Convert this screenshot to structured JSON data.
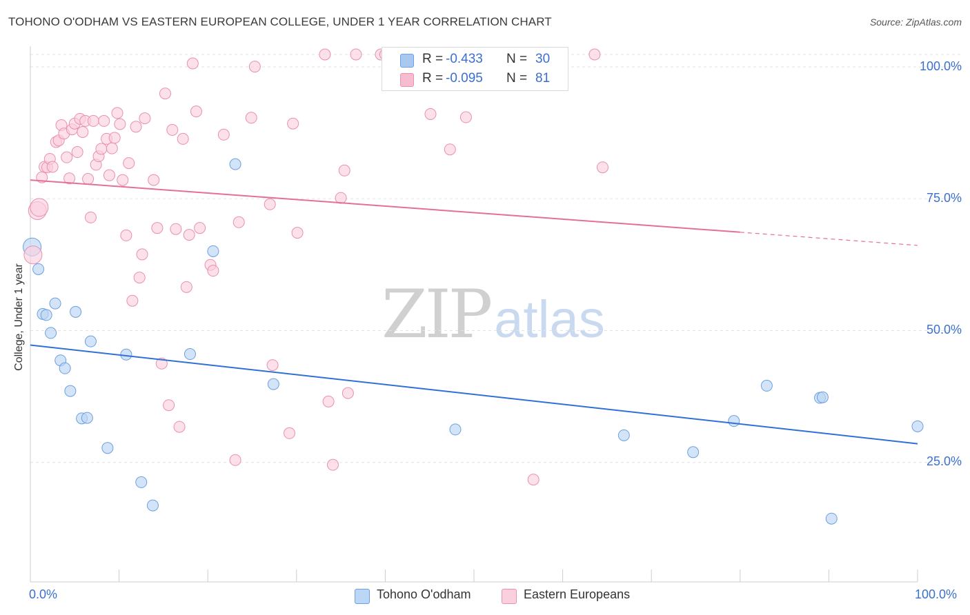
{
  "title": "TOHONO O'ODHAM VS EASTERN EUROPEAN COLLEGE, UNDER 1 YEAR CORRELATION CHART",
  "source": "Source: ZipAtlas.com",
  "watermark": {
    "zip": "ZIP",
    "atlas": "atlas"
  },
  "legend": {
    "rows": [
      {
        "r_label": "R =",
        "r_value": "-0.433",
        "n_label": "N =",
        "n_value": "30",
        "color": "#a8c8f0",
        "border": "#6a9fe0"
      },
      {
        "r_label": "R =",
        "r_value": "-0.095",
        "n_label": "N =",
        "n_value": "81",
        "color": "#f8bcd0",
        "border": "#e890ae"
      }
    ]
  },
  "bottom_legend": [
    {
      "label": "Tohono O'odham",
      "color": "#bcd6f5",
      "border": "#6a9fe0"
    },
    {
      "label": "Eastern Europeans",
      "color": "#fbd0de",
      "border": "#e890ae"
    }
  ],
  "chart_data": {
    "type": "scatter",
    "title": "TOHONO O'ODHAM VS EASTERN EUROPEAN COLLEGE, UNDER 1 YEAR CORRELATION CHART",
    "xlabel": "",
    "ylabel": "College, Under 1 year",
    "xlim": [
      0,
      100
    ],
    "ylim": [
      0,
      100
    ],
    "x_tick_labels": [
      "0.0%",
      "100.0%"
    ],
    "y_tick_labels": [
      {
        "value": 100,
        "label": "100.0%"
      },
      {
        "value": 75,
        "label": "75.0%"
      },
      {
        "value": 50,
        "label": "50.0%"
      },
      {
        "value": 25,
        "label": "25.0%"
      }
    ],
    "grid": "horizontal dashed",
    "series": [
      {
        "name": "Tohono O'odham",
        "color": "#6a9fe0",
        "fill": "#bcd6f5",
        "trend": {
          "x0": 0,
          "y0": 44.9,
          "x1": 100,
          "y1": 26.2,
          "color": "#2f6fd6"
        },
        "points": [
          [
            0.2,
            63.5
          ],
          [
            0.9,
            59.3
          ],
          [
            1.4,
            50.8
          ],
          [
            1.8,
            50.6
          ],
          [
            2.3,
            47.2
          ],
          [
            2.8,
            52.8
          ],
          [
            3.4,
            42.0
          ],
          [
            3.9,
            40.5
          ],
          [
            4.5,
            36.2
          ],
          [
            5.1,
            51.2
          ],
          [
            5.8,
            31.0
          ],
          [
            6.4,
            31.1
          ],
          [
            6.8,
            45.6
          ],
          [
            8.7,
            25.4
          ],
          [
            10.8,
            43.1
          ],
          [
            12.5,
            18.9
          ],
          [
            13.8,
            14.5
          ],
          [
            18.0,
            43.2
          ],
          [
            20.6,
            62.7
          ],
          [
            23.1,
            79.2
          ],
          [
            27.4,
            37.5
          ],
          [
            47.9,
            28.9
          ],
          [
            66.9,
            27.8
          ],
          [
            74.7,
            24.6
          ],
          [
            79.3,
            30.5
          ],
          [
            83.0,
            37.2
          ],
          [
            89.0,
            34.9
          ],
          [
            89.3,
            35.0
          ],
          [
            90.3,
            12.0
          ],
          [
            100.0,
            29.5
          ]
        ]
      },
      {
        "name": "Eastern Europeans",
        "color": "#e890ae",
        "fill": "#fbd0de",
        "trend": {
          "x0": 0,
          "y0": 76.2,
          "x1": 80.0,
          "y1": 66.3,
          "x_dash_end": 100,
          "y_dash_end": 63.8,
          "color": "#e56f96"
        },
        "points": [
          [
            0.3,
            62.0
          ],
          [
            0.8,
            70.4
          ],
          [
            1.0,
            71.0
          ],
          [
            1.3,
            76.7
          ],
          [
            1.6,
            78.7
          ],
          [
            1.9,
            78.6
          ],
          [
            2.2,
            80.2
          ],
          [
            2.5,
            78.7
          ],
          [
            2.9,
            83.4
          ],
          [
            3.2,
            83.7
          ],
          [
            3.5,
            86.6
          ],
          [
            3.8,
            85.0
          ],
          [
            4.1,
            80.5
          ],
          [
            4.4,
            76.5
          ],
          [
            4.7,
            85.8
          ],
          [
            5.0,
            86.9
          ],
          [
            5.3,
            81.5
          ],
          [
            5.6,
            87.8
          ],
          [
            5.9,
            85.3
          ],
          [
            6.2,
            87.4
          ],
          [
            6.5,
            76.4
          ],
          [
            6.8,
            69.1
          ],
          [
            7.1,
            87.4
          ],
          [
            7.4,
            79.1
          ],
          [
            7.7,
            80.7
          ],
          [
            8.0,
            82.1
          ],
          [
            8.3,
            87.4
          ],
          [
            8.6,
            84.0
          ],
          [
            8.9,
            77.1
          ],
          [
            9.2,
            82.2
          ],
          [
            9.5,
            84.2
          ],
          [
            9.8,
            88.9
          ],
          [
            10.1,
            86.8
          ],
          [
            10.4,
            76.2
          ],
          [
            10.8,
            65.7
          ],
          [
            11.1,
            79.4
          ],
          [
            11.5,
            53.3
          ],
          [
            11.9,
            86.3
          ],
          [
            12.3,
            57.7
          ],
          [
            12.6,
            62.1
          ],
          [
            12.9,
            87.9
          ],
          [
            13.9,
            76.2
          ],
          [
            14.3,
            67.1
          ],
          [
            14.8,
            41.4
          ],
          [
            15.2,
            92.6
          ],
          [
            15.6,
            33.5
          ],
          [
            16.0,
            85.7
          ],
          [
            16.4,
            66.9
          ],
          [
            16.8,
            29.4
          ],
          [
            17.2,
            84.0
          ],
          [
            17.6,
            55.9
          ],
          [
            17.9,
            65.8
          ],
          [
            18.3,
            98.3
          ],
          [
            18.7,
            89.2
          ],
          [
            19.1,
            67.1
          ],
          [
            20.3,
            60.1
          ],
          [
            20.6,
            59.0
          ],
          [
            21.8,
            84.8
          ],
          [
            23.1,
            23.1
          ],
          [
            23.5,
            68.2
          ],
          [
            24.9,
            88.0
          ],
          [
            25.3,
            97.7
          ],
          [
            27.0,
            71.6
          ],
          [
            27.3,
            41.1
          ],
          [
            29.2,
            28.2
          ],
          [
            29.6,
            86.9
          ],
          [
            30.1,
            66.2
          ],
          [
            33.2,
            100.0
          ],
          [
            33.6,
            34.2
          ],
          [
            34.1,
            22.2
          ],
          [
            35.0,
            72.8
          ],
          [
            35.4,
            78.0
          ],
          [
            35.8,
            35.8
          ],
          [
            36.7,
            100.0
          ],
          [
            39.5,
            100.0
          ],
          [
            40.0,
            100.0
          ],
          [
            45.1,
            88.7
          ],
          [
            47.3,
            82.0
          ],
          [
            49.1,
            88.1
          ],
          [
            56.7,
            19.4
          ],
          [
            63.6,
            100.0
          ],
          [
            64.5,
            78.6
          ]
        ]
      }
    ]
  }
}
